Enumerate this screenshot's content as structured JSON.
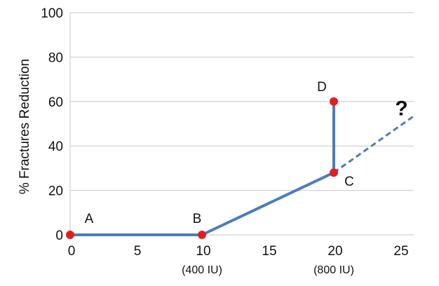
{
  "chart_data": {
    "type": "line",
    "ylabel": "% Fractures Reduction",
    "xlabel": "",
    "xlim": [
      0,
      25
    ],
    "ylim": [
      0,
      100
    ],
    "x_ticks": [
      0,
      5,
      10,
      15,
      20,
      25
    ],
    "x_tick_labels": [
      "0",
      "5",
      "10",
      "15",
      "20",
      "25"
    ],
    "x_sublabels": [
      {
        "x": 10,
        "text": "(400 IU)"
      },
      {
        "x": 20,
        "text": "(800 IU)"
      }
    ],
    "y_ticks": [
      0,
      20,
      40,
      60,
      80,
      100
    ],
    "y_tick_labels": [
      "0",
      "20",
      "40",
      "60",
      "80",
      "100"
    ],
    "grid": "horizontal",
    "series": [
      {
        "style": "solid",
        "points": [
          {
            "label": "A",
            "x": 0,
            "y": 0
          },
          {
            "label": "B",
            "x": 10,
            "y": 0
          },
          {
            "label": "C",
            "x": 20,
            "y": 28
          },
          {
            "label": "D",
            "x": 20,
            "y": 60
          }
        ]
      },
      {
        "style": "dashed",
        "points": [
          {
            "x": 20,
            "y": 28
          },
          {
            "x": 26.2,
            "y": 54
          }
        ]
      }
    ],
    "annotations": [
      {
        "text": "?",
        "x": 25.4,
        "y": 57
      }
    ],
    "colors": {
      "line": "#4a7ebb",
      "marker": "#e02020",
      "grid": "#c8c8c8"
    }
  }
}
